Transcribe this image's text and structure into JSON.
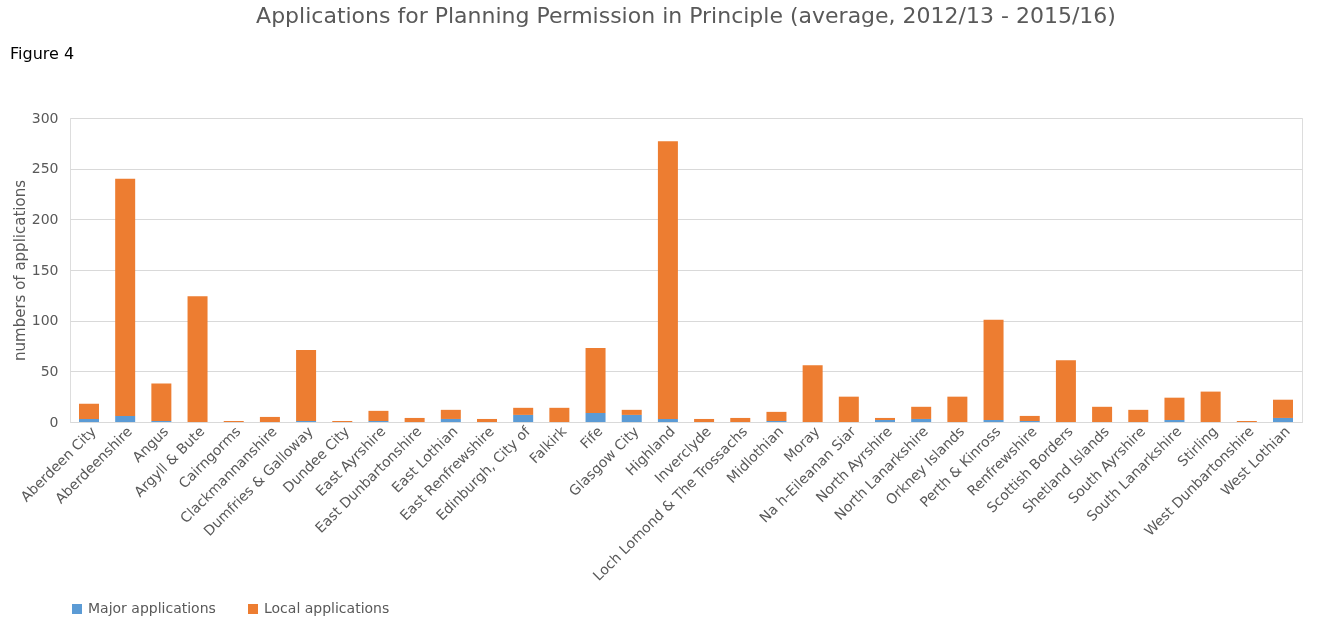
{
  "chart_data": {
    "type": "bar",
    "title": "Applications for Planning Permission in Principle (average, 2012/13 - 2015/16)",
    "ylabel": "numbers of applications",
    "annotations": [
      "Figure 4"
    ],
    "categories": [
      "Aberdeen City",
      "Aberdeenshire",
      "Angus",
      "Argyll & Bute",
      "Cairngorms",
      "Clackmannanshire",
      "Dumfries & Galloway",
      "Dundee City",
      "East Ayrshire",
      "East Dunbartonshire",
      "East Lothian",
      "East Renfrewshire",
      "Edinburgh, City of",
      "Falkirk",
      "Fife",
      "Glasgow City",
      "Highland",
      "Inverclyde",
      "Loch Lomond & The Trossachs",
      "Midlothian",
      "Moray",
      "Na h-Eileanan Siar",
      "North Ayrshire",
      "North Lanarkshire",
      "Orkney Islands",
      "Perth & Kinross",
      "Renfrewshire",
      "Scottish Borders",
      "Shetland Islands",
      "South Ayrshire",
      "South Lanarkshire",
      "Stirling",
      "West Dunbartonshire",
      "West Lothian"
    ],
    "stacked": true,
    "series": [
      {
        "name": "Major applications",
        "color": "#5b9bd5",
        "values": [
          3,
          6,
          1,
          0,
          0,
          0,
          1,
          0,
          1,
          0,
          3,
          0,
          7,
          0,
          9,
          7,
          3,
          0,
          0,
          1,
          0,
          0,
          2,
          3,
          0,
          2,
          1,
          0,
          0,
          0,
          2,
          0,
          0,
          4
        ]
      },
      {
        "name": "Local applications",
        "color": "#ed7d31",
        "values": [
          15,
          234,
          37,
          124,
          1,
          5,
          70,
          1,
          10,
          4,
          9,
          3,
          7,
          14,
          64,
          5,
          274,
          3,
          4,
          9,
          56,
          25,
          2,
          12,
          25,
          99,
          5,
          61,
          15,
          12,
          22,
          30,
          1,
          18
        ]
      }
    ],
    "ylim": [
      0,
      300
    ],
    "yticks": [
      0,
      50,
      100,
      150,
      200,
      250,
      300
    ],
    "grid": "y",
    "legend": "bottom"
  }
}
